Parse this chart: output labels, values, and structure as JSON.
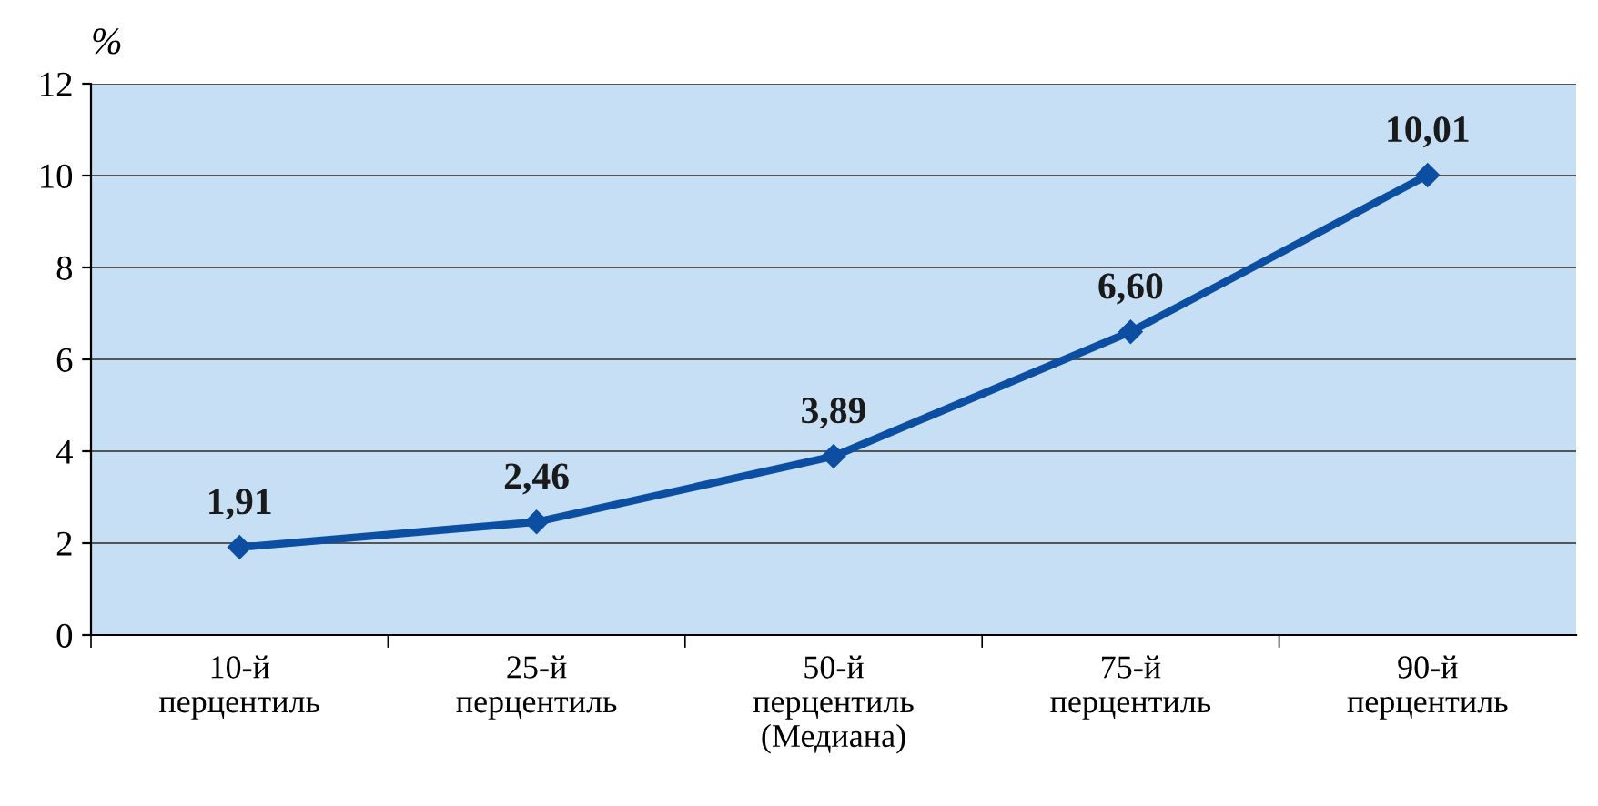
{
  "chart_data": {
    "type": "line",
    "ylabel": "%",
    "categories": [
      "10-й\nперцентиль",
      "25-й\nперцентиль",
      "50-й\nперцентиль\n(Медиана)",
      "75-й\nперцентиль",
      "90-й\nперцентиль"
    ],
    "series": [
      {
        "color": "#0b4ea2",
        "values": [
          1.91,
          2.46,
          3.89,
          6.6,
          10.01
        ],
        "value_labels": [
          "1,91",
          "2,46",
          "3,89",
          "6,60",
          "10,01"
        ]
      }
    ],
    "ylim": [
      0,
      12
    ],
    "yticks": [
      0,
      2,
      4,
      6,
      8,
      10,
      12
    ],
    "grid": "y",
    "marker": "diamond",
    "line_style": "solid",
    "legend": false
  }
}
